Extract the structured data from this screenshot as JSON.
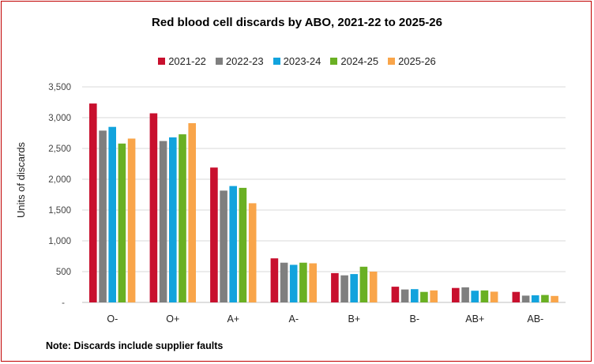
{
  "chart_data": {
    "type": "bar",
    "title": "Red blood cell discards by ABO, 2021-22 to 2025-26",
    "xlabel": "",
    "ylabel": "Units of discards",
    "ylim": [
      0,
      3500
    ],
    "yticks": [
      "-",
      "500",
      "1,000",
      "1,500",
      "2,000",
      "2,500",
      "3,000",
      "3,500"
    ],
    "grid": true,
    "legend_position": "top",
    "categories": [
      "O-",
      "O+",
      "A+",
      "A-",
      "B+",
      "B-",
      "AB+",
      "AB-"
    ],
    "series": [
      {
        "name": "2021-22",
        "color": "#c8102e",
        "values": [
          3230,
          3070,
          2190,
          715,
          475,
          255,
          235,
          170
        ]
      },
      {
        "name": "2022-23",
        "color": "#7f7f7f",
        "values": [
          2790,
          2620,
          1815,
          645,
          440,
          210,
          245,
          110
        ]
      },
      {
        "name": "2023-24",
        "color": "#12a3dd",
        "values": [
          2850,
          2680,
          1890,
          610,
          460,
          215,
          190,
          115
        ]
      },
      {
        "name": "2024-25",
        "color": "#6ab023",
        "values": [
          2580,
          2730,
          1860,
          645,
          580,
          170,
          195,
          120
        ]
      },
      {
        "name": "2025-26",
        "color": "#f9a54a",
        "values": [
          2660,
          2910,
          1610,
          635,
          500,
          195,
          175,
          105
        ]
      }
    ]
  },
  "note": "Note: Discards include supplier faults"
}
